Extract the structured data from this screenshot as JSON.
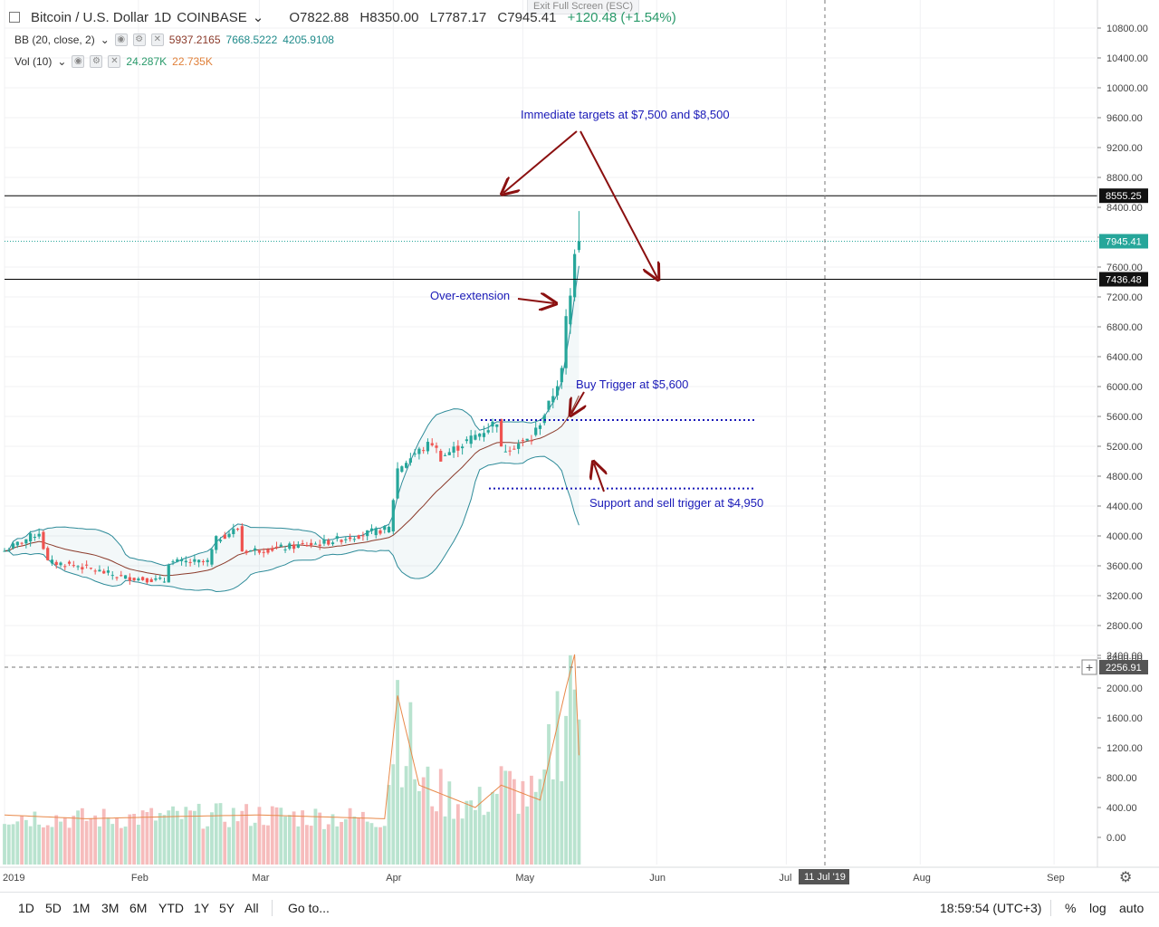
{
  "header": {
    "symbol": "Bitcoin / U.S. Dollar",
    "interval": "1D",
    "exchange": "COINBASE",
    "open": "O7822.88",
    "high": "H8350.00",
    "low": "L7787.17",
    "close": "C7945.41",
    "change": "+120.48 (+1.54%)",
    "bb_label": "BB (20, close, 2)",
    "bb_basis": "5937.2165",
    "bb_upper": "7668.5222",
    "bb_lower": "4205.9108",
    "vol_label": "Vol (10)",
    "vol_value": "24.287K",
    "vol_ma": "22.735K",
    "exit_fullscreen": "Exit Full Screen (ESC)"
  },
  "colors": {
    "up": "#26a69a",
    "down": "#ef5350",
    "bb_band": "#2e8b99",
    "bb_basis": "#8b3a2a",
    "annotation": "#1a1ab8",
    "arrow": "#8b1010",
    "vol_up": "#b9e3cf",
    "vol_down": "#f6bcbc",
    "vol_ma": "#e8894a"
  },
  "annotations": {
    "targets": "Immediate targets at $7,500 and $8,500",
    "overext": "Over-extension",
    "buy": "Buy Trigger at $5,600",
    "support": "Support and sell trigger at $4,950"
  },
  "price_labels": {
    "level_high": "8555.25",
    "last": "7945.41",
    "level_low": "7436.48",
    "volume_cursor": "2256.91",
    "date_cursor": "11 Jul '19"
  },
  "footer": {
    "ranges": [
      "1D",
      "5D",
      "1M",
      "3M",
      "6M",
      "YTD",
      "1Y",
      "5Y",
      "All"
    ],
    "goto": "Go to...",
    "time": "18:59:54 (UTC+3)",
    "pct": "%",
    "log": "log",
    "auto": "auto"
  },
  "chart_data": {
    "type": "candlestick",
    "symbol": "Bitcoin / U.S. Dollar",
    "interval": "1D",
    "price_axis_ticks": [
      2400,
      2800,
      3200,
      3600,
      4000,
      4400,
      4800,
      5200,
      5600,
      6000,
      6400,
      6800,
      7200,
      7600,
      8000,
      8400,
      8800,
      9200,
      9600,
      10000,
      10400,
      10800
    ],
    "volume_axis_ticks": [
      0,
      400,
      800,
      1200,
      1600,
      2000,
      2400
    ],
    "x_ticks": [
      "2019",
      "Feb",
      "Mar",
      "Apr",
      "May",
      "Jun",
      "Jul",
      "Aug",
      "Sep"
    ],
    "horizontal_levels": [
      8555.25,
      7436.48
    ],
    "last_price": 7945.41,
    "buy_trigger": 5600,
    "support_level": 4950,
    "anchors": [
      [
        "2019-01-01",
        3800
      ],
      [
        "2019-01-09",
        4050
      ],
      [
        "2019-01-11",
        3650
      ],
      [
        "2019-01-18",
        3600
      ],
      [
        "2019-01-28",
        3450
      ],
      [
        "2019-02-07",
        3400
      ],
      [
        "2019-02-08",
        3650
      ],
      [
        "2019-02-17",
        3650
      ],
      [
        "2019-02-19",
        3950
      ],
      [
        "2019-02-24",
        4100
      ],
      [
        "2019-02-25",
        3800
      ],
      [
        "2019-03-03",
        3820
      ],
      [
        "2019-03-15",
        3900
      ],
      [
        "2019-03-31",
        4100
      ],
      [
        "2019-04-02",
        4900
      ],
      [
        "2019-04-06",
        5100
      ],
      [
        "2019-04-10",
        5250
      ],
      [
        "2019-04-12",
        5050
      ],
      [
        "2019-04-23",
        5450
      ],
      [
        "2019-04-25",
        5550
      ],
      [
        "2019-04-26",
        5150
      ],
      [
        "2019-05-03",
        5300
      ],
      [
        "2019-05-07",
        5750
      ],
      [
        "2019-05-10",
        6200
      ],
      [
        "2019-05-11",
        6900
      ],
      [
        "2019-05-12",
        7200
      ],
      [
        "2019-05-13",
        7850
      ],
      [
        "2019-05-14",
        7945
      ]
    ],
    "volume_anchors": [
      [
        "2019-01-01",
        300
      ],
      [
        "2019-01-20",
        250
      ],
      [
        "2019-02-10",
        280
      ],
      [
        "2019-03-01",
        300
      ],
      [
        "2019-03-30",
        250
      ],
      [
        "2019-04-02",
        1900
      ],
      [
        "2019-04-07",
        700
      ],
      [
        "2019-04-20",
        400
      ],
      [
        "2019-04-26",
        700
      ],
      [
        "2019-05-05",
        500
      ],
      [
        "2019-05-11",
        2000
      ],
      [
        "2019-05-13",
        2450
      ],
      [
        "2019-05-14",
        1100
      ]
    ]
  }
}
